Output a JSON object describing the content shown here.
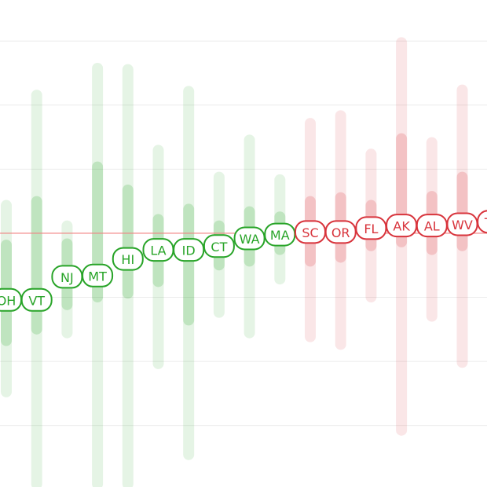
{
  "chart_data": {
    "type": "interval",
    "categories": [
      "OH",
      "VT",
      "NJ",
      "MT",
      "HI",
      "LA",
      "ID",
      "CT",
      "WA",
      "MA",
      "SC",
      "OR",
      "FL",
      "AK",
      "AL",
      "WV",
      "TX"
    ],
    "values": [
      -5.2,
      -5.2,
      -3.4,
      -3.3,
      -2.0,
      -1.3,
      -1.3,
      -1.0,
      -0.4,
      -0.1,
      0.1,
      0.1,
      0.4,
      0.6,
      0.6,
      0.7,
      0.9
    ],
    "outer_low": [
      -12.8,
      -20,
      -8.2,
      -20,
      -20,
      -10.6,
      -17.7,
      -6.6,
      -8.2,
      -4.0,
      -8.5,
      -9.1,
      -5.4,
      -15.8,
      -6.9,
      -10.5,
      -8.2
    ],
    "outer_high": [
      2.6,
      11.2,
      1.0,
      13.3,
      13.2,
      6.9,
      11.5,
      4.8,
      7.7,
      4.6,
      9.0,
      9.6,
      6.6,
      15.3,
      7.5,
      11.6,
      6.6
    ],
    "inner_low": [
      -8.8,
      -7.9,
      -6.0,
      -5.4,
      -5.1,
      -4.2,
      -7.2,
      -2.9,
      -2.6,
      -1.7,
      -2.6,
      -2.3,
      -1.4,
      -1.1,
      -1.7,
      -1.4,
      -2.0
    ],
    "inner_high": [
      -0.5,
      2.9,
      -0.4,
      5.6,
      3.8,
      1.5,
      2.3,
      1.0,
      2.1,
      1.7,
      2.9,
      3.2,
      2.6,
      7.8,
      3.3,
      4.8,
      2.9
    ],
    "ylim": [
      -19.8,
      18.2
    ],
    "yticks": [
      -15,
      -10,
      -5,
      0,
      5,
      10,
      15
    ],
    "reference_line": 0,
    "grid": true,
    "colors": {
      "negative": "#28a428",
      "positive": "#d8343c",
      "reference": "#f08080"
    }
  }
}
